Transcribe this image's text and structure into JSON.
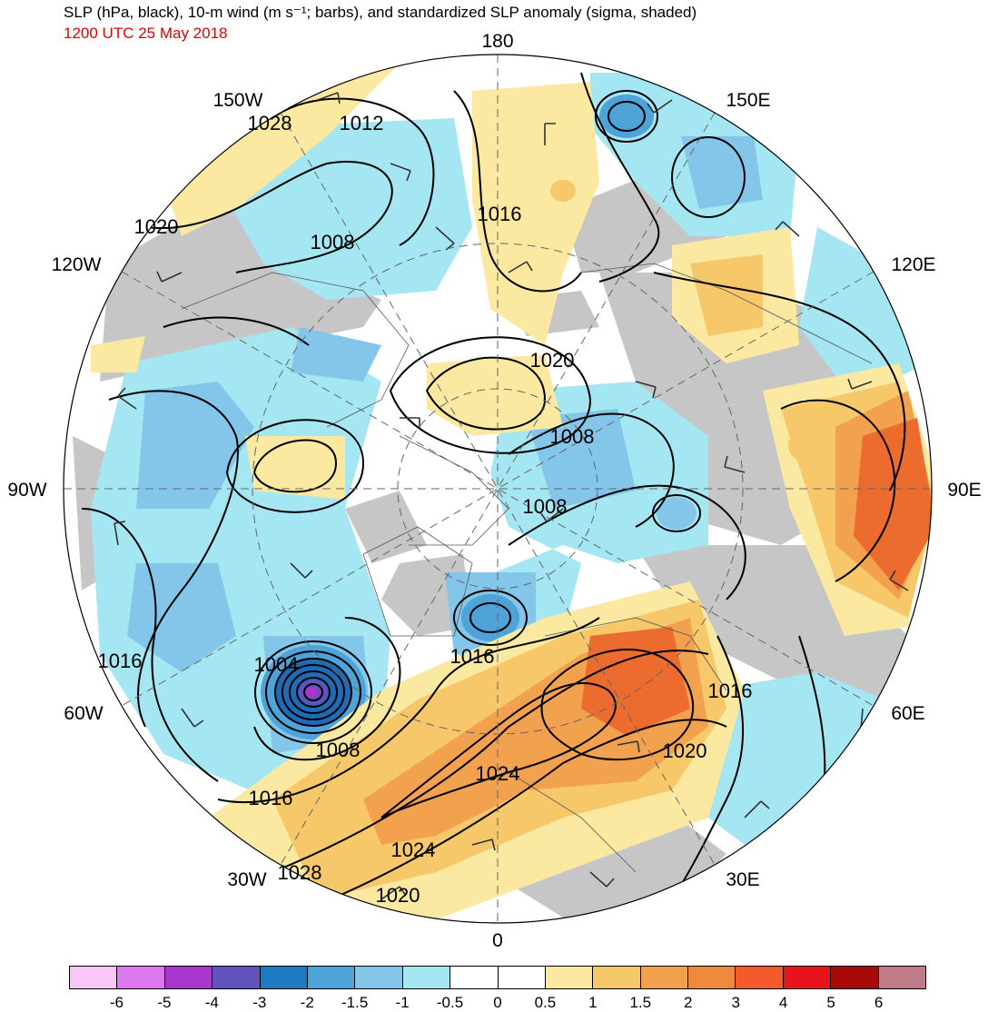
{
  "header": {
    "title": "SLP (hPa, black), 10-m wind (m s⁻¹; barbs), and standardized SLP anomaly (sigma, shaded)",
    "valid_time": "1200 UTC 25 May 2018",
    "valid_time_color": "#e00000"
  },
  "map": {
    "projection": "north polar stereographic",
    "longitude_labels": {
      "top": "180",
      "bottom": "0",
      "left": "90W",
      "right": "90E",
      "upper_left_1": "150W",
      "upper_left_2": "120W",
      "upper_right_1": "150E",
      "upper_right_2": "120E",
      "lower_left_1": "60W",
      "lower_left_2": "30W",
      "lower_right_1": "60E",
      "lower_right_2": "30E"
    },
    "isobar_labels": [
      "1028",
      "1012",
      "1020",
      "1008",
      "1016",
      "1020",
      "1008",
      "1008",
      "1004",
      "1016",
      "1016",
      "1008",
      "1016",
      "1024",
      "1016",
      "1020",
      "1028",
      "1024",
      "1020"
    ],
    "colors": {
      "land_gray": "#c6c6c6",
      "neg_light": "#a5e6f3",
      "neg_mid": "#83c6ea",
      "neg_strong": "#4ea3d9",
      "neg_deep": "#1f6bb6",
      "pos_light": "#fbe9a1",
      "pos_mid": "#f6c86a",
      "pos_strong": "#f2a14e",
      "pos_deep": "#ec6b2e"
    }
  },
  "legend": {
    "swatches": [
      "#f7c8f7",
      "#dd77ee",
      "#a836cc",
      "#6054bc",
      "#1f7cc4",
      "#4ea3d9",
      "#83c6ea",
      "#a5e6f3",
      "#ffffff",
      "#ffffff",
      "#fbe9a1",
      "#f6c86a",
      "#f2a14e",
      "#ef8a3c",
      "#f35a2c",
      "#e8131b",
      "#a80a0a",
      "#c07a88"
    ],
    "ticks": [
      "-6",
      "-5",
      "-4",
      "-3",
      "-2",
      "-1.5",
      "-1",
      "-0.5",
      "0",
      "0.5",
      "1",
      "1.5",
      "2",
      "3",
      "4",
      "5",
      "6"
    ]
  }
}
